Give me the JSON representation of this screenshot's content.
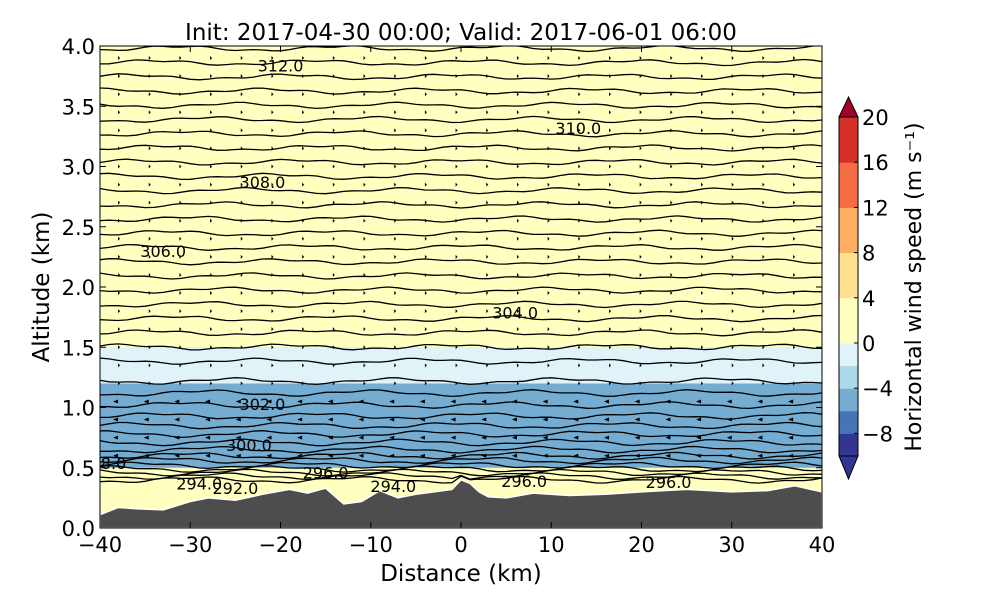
{
  "chart_data": {
    "type": "heatmap",
    "title": "Init: 2017-04-30 00:00; Valid: 2017-06-01 06:00",
    "xlabel": "Distance (km)",
    "ylabel": "Altitude (km)",
    "xlim": [
      -40,
      40
    ],
    "ylim": [
      0.0,
      4.0
    ],
    "xticks": [
      -40,
      -30,
      -20,
      -10,
      0,
      10,
      20,
      30,
      40
    ],
    "xtick_labels": [
      "−40",
      "−30",
      "−20",
      "−10",
      "0",
      "10",
      "20",
      "30",
      "40"
    ],
    "yticks": [
      0.0,
      0.5,
      1.0,
      1.5,
      2.0,
      2.5,
      3.0,
      3.5,
      4.0
    ],
    "ytick_labels": [
      "0.0",
      "0.5",
      "1.0",
      "1.5",
      "2.0",
      "2.5",
      "3.0",
      "3.5",
      "4.0"
    ],
    "colorbar": {
      "label": "Horizontal wind speed (m s⁻¹)",
      "range": [
        -10,
        20
      ],
      "ticks": [
        20,
        16,
        12,
        8,
        4,
        0,
        -4,
        -8
      ],
      "tick_labels": [
        "20",
        "16",
        "12",
        "8",
        "4",
        "0",
        "−4",
        "−8"
      ],
      "colormap": "RdYlBu_r",
      "extend": "both"
    },
    "wind_field_bands": [
      {
        "z": [
          2.0,
          4.0
        ],
        "speed_ms": 3
      },
      {
        "z": [
          1.5,
          2.0
        ],
        "speed_ms": 1
      },
      {
        "z": [
          1.2,
          1.5
        ],
        "speed_ms": -1
      },
      {
        "z": [
          0.5,
          1.2
        ],
        "speed_ms": -4
      }
    ],
    "theta_contour_labels": [
      {
        "text": "312.0",
        "x": -20,
        "z": 3.84
      },
      {
        "text": "310.0",
        "x": 13,
        "z": 3.32
      },
      {
        "text": "308.0",
        "x": -22,
        "z": 2.87
      },
      {
        "text": "306.0",
        "x": -33,
        "z": 2.3
      },
      {
        "text": "304.0",
        "x": 6,
        "z": 1.79
      },
      {
        "text": "302.0",
        "x": -22,
        "z": 1.03
      },
      {
        "text": "300.0",
        "x": -23.5,
        "z": 0.69
      },
      {
        "text": "8.0",
        "x": -38.5,
        "z": 0.54
      },
      {
        "text": "294.0",
        "x": -29,
        "z": 0.37
      },
      {
        "text": "292.0",
        "x": -25,
        "z": 0.33
      },
      {
        "text": "296.0",
        "x": -15,
        "z": 0.46
      },
      {
        "text": "294.0",
        "x": -7.5,
        "z": 0.35
      },
      {
        "text": "296.0",
        "x": 7,
        "z": 0.39
      },
      {
        "text": "296.0",
        "x": 23,
        "z": 0.38
      }
    ],
    "terrain_km": {
      "x": [
        -40,
        -38,
        -36,
        -33,
        -30,
        -28,
        -25,
        -22,
        -19,
        -17,
        -15,
        -13,
        -11,
        -9,
        -7,
        -5,
        -3,
        -1,
        0,
        1,
        2,
        3,
        5,
        8,
        12,
        16,
        20,
        25,
        30,
        34,
        37,
        40
      ],
      "z": [
        0.11,
        0.17,
        0.16,
        0.15,
        0.22,
        0.25,
        0.23,
        0.28,
        0.32,
        0.29,
        0.33,
        0.2,
        0.22,
        0.31,
        0.25,
        0.28,
        0.3,
        0.32,
        0.4,
        0.37,
        0.3,
        0.26,
        0.25,
        0.29,
        0.27,
        0.28,
        0.3,
        0.32,
        0.3,
        0.31,
        0.35,
        0.3
      ]
    },
    "colors": {
      "terrain": "#4d4d4d",
      "contour": "#000000"
    }
  }
}
